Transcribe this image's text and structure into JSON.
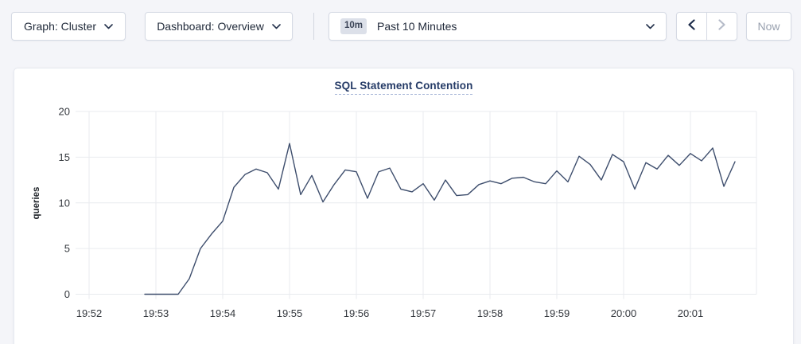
{
  "toolbar": {
    "graph_dropdown": {
      "label": "Graph: Cluster"
    },
    "dashboard_dropdown": {
      "label": "Dashboard: Overview"
    },
    "time_range": {
      "badge": "10m",
      "label": "Past 10 Minutes"
    },
    "now_button": {
      "label": "Now"
    }
  },
  "chart_data": {
    "type": "line",
    "title": "SQL Statement Contention",
    "ylabel": "queries",
    "xlabel": "",
    "x_ticks": [
      "19:52",
      "19:53",
      "19:54",
      "19:55",
      "19:56",
      "19:57",
      "19:58",
      "19:59",
      "20:00",
      "20:01"
    ],
    "y_ticks": [
      0,
      5,
      10,
      15,
      20
    ],
    "ylim": [
      0,
      20
    ],
    "grid": true,
    "legend": "none",
    "series": [
      {
        "name": "queries",
        "color": "#3e4e6d",
        "start_time": "19:52:50",
        "interval_seconds": 10,
        "values": [
          0,
          0,
          0,
          0,
          1.7,
          5,
          6.6,
          8,
          11.7,
          13.1,
          13.7,
          13.3,
          11.5,
          16.5,
          10.9,
          13,
          10.1,
          12,
          13.6,
          13.4,
          10.5,
          13.4,
          13.8,
          11.5,
          11.2,
          12.1,
          10.3,
          12.5,
          10.8,
          10.9,
          12,
          12.4,
          12.1,
          12.7,
          12.8,
          12.3,
          12.1,
          13.5,
          12.3,
          15.1,
          14.2,
          12.5,
          15.3,
          14.5,
          11.5,
          14.4,
          13.7,
          15.2,
          14.1,
          15.4,
          14.6,
          16,
          11.8,
          14.5
        ]
      }
    ]
  },
  "colors": {
    "page_background": "#f4f5f9",
    "card_background": "#ffffff",
    "grid_line": "#e9ebef",
    "series_line": "#3e4e6d",
    "tick_text": "#33373d",
    "title_text": "#243a66",
    "disabled_text": "#99a1af"
  }
}
